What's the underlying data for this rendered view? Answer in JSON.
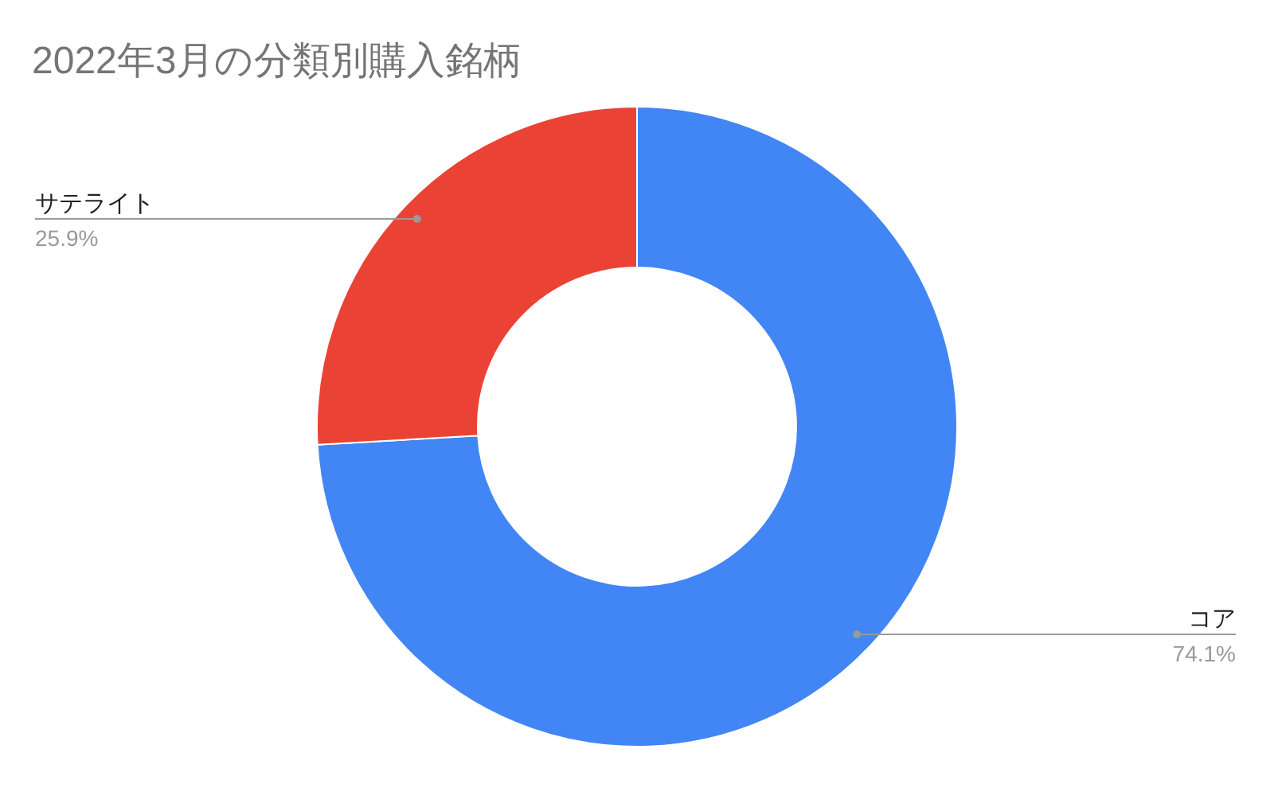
{
  "chart_data": {
    "type": "donut",
    "title": "2022年3月の分類別購入銘柄",
    "categories": [
      "コア",
      "サテライト"
    ],
    "values": [
      74.1,
      25.9
    ],
    "colors": [
      "#4285f4",
      "#ea4335"
    ],
    "value_labels": [
      "74.1%",
      "25.9%"
    ]
  }
}
